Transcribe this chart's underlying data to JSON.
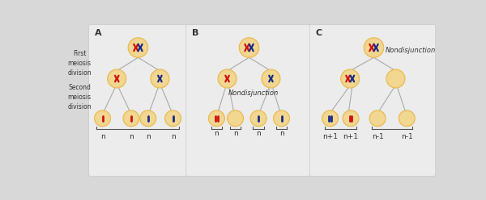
{
  "bg_color": "#d8d8d8",
  "panel_bg": "#ececec",
  "cell_color_center": "#f0d090",
  "cell_color_edge": "#e8b840",
  "line_color": "#aaaaaa",
  "chr_red": "#cc1111",
  "chr_blue": "#1a2a88",
  "text_color": "#333333",
  "bottom_labels_A": [
    "n",
    "n",
    "n",
    "n"
  ],
  "bottom_labels_B": [
    "n",
    "n",
    "n",
    "n"
  ],
  "bottom_labels_C": [
    "n+1",
    "n+1",
    "n-1",
    "n-1"
  ],
  "nondisjunction_B": "Nondisjunction",
  "nondisjunction_C": "Nondisjunction",
  "side_label_1": "First\nmeiosis\ndivision",
  "side_label_2": "Second\nmeiosis\ndivision",
  "panel_A_label": "A",
  "panel_B_label": "B",
  "panel_C_label": "C"
}
